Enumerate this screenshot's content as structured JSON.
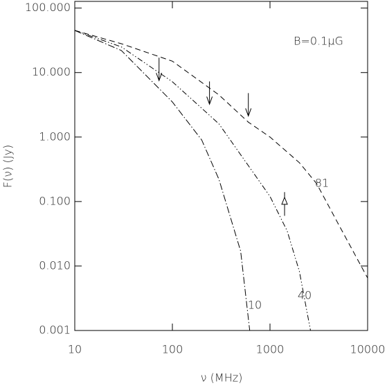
{
  "chart_data": {
    "type": "line",
    "x_label": "ν (MHz)",
    "y_label": "F(ν)  (Jy)",
    "annotation": "B=0.1μG",
    "x_log": true,
    "y_log": true,
    "xlim": [
      10,
      10000
    ],
    "ylim": [
      0.001,
      127
    ],
    "xticks": [
      10,
      100,
      1000,
      10000
    ],
    "yticks": [
      {
        "value": 100,
        "label": "100.000"
      },
      {
        "value": 10,
        "label": "10.000"
      },
      {
        "value": 1,
        "label": "1.000"
      },
      {
        "value": 0.1,
        "label": "0.100"
      },
      {
        "value": 0.01,
        "label": "0.010"
      },
      {
        "value": 0.001,
        "label": "0.001"
      }
    ],
    "series": [
      {
        "name": "81",
        "color": "#000000",
        "style": "dashed",
        "x": [
          10,
          30,
          100,
          300,
          600,
          1000,
          2000,
          3000,
          5000,
          10000
        ],
        "values": [
          45,
          28,
          15,
          4.5,
          1.7,
          1.0,
          0.4,
          0.19,
          0.045,
          0.0065
        ]
      },
      {
        "name": "40",
        "color": "#000000",
        "style": "dash-dot-dot",
        "x": [
          10,
          30,
          100,
          300,
          1000,
          1500,
          2000,
          2600
        ],
        "values": [
          45,
          25,
          7.2,
          1.6,
          0.12,
          0.035,
          0.0083,
          0.001
        ]
      },
      {
        "name": "10",
        "color": "#000000",
        "style": "dash-dot",
        "x": [
          10,
          30,
          100,
          200,
          300,
          500,
          620
        ],
        "values": [
          45,
          22,
          3.5,
          0.9,
          0.22,
          0.017,
          0.001
        ]
      }
    ],
    "upper_limits": {
      "x": [
        73,
        240,
        600
      ],
      "values": [
        17,
        7.3,
        4.8
      ]
    },
    "points": {
      "x": [
        1410
      ],
      "values": [
        0.1
      ],
      "errors": [
        0.04
      ]
    }
  }
}
